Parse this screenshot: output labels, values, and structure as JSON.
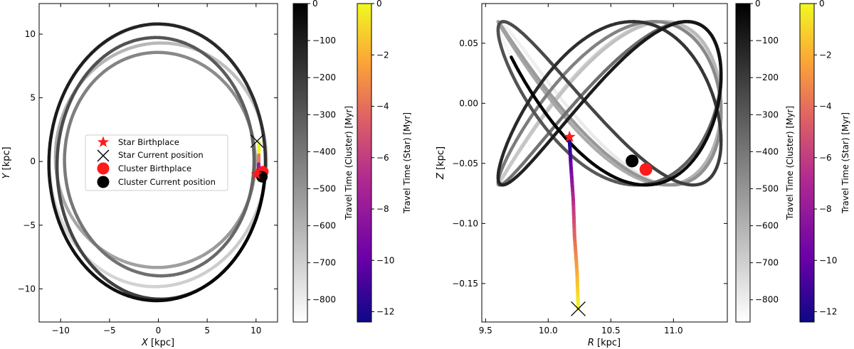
{
  "chart_data": [
    {
      "type": "line",
      "panel": "left",
      "title": "",
      "xlabel_var": "X",
      "xlabel_unit": " [kpc]",
      "ylabel_var": "Y",
      "ylabel_unit": " [kpc]",
      "xlim": [
        -12.2,
        12.2
      ],
      "ylim": [
        -12.6,
        12.4
      ],
      "xticks": [
        -10,
        -5,
        0,
        5,
        10
      ],
      "yticks": [
        -10,
        -5,
        0,
        5,
        10
      ],
      "grid": false,
      "legend_position": "center-left",
      "legend": {
        "star_birthplace": "Star Birthplace",
        "star_current": "Star Current position",
        "cluster_birthplace": "Cluster Birthplace",
        "cluster_current": "Cluster Current position"
      },
      "cluster_orbit": {
        "description": "precessing ellipse in X-Y plane, color = travel time (cluster)",
        "semi_axis_x_range": [
          10.4,
          11.2
        ],
        "semi_axis_y_range": [
          9.7,
          11.0
        ],
        "loops": 5,
        "time_range_myr": [
          -860,
          0
        ]
      },
      "star_orbit": {
        "x": [
          10.3,
          10.28,
          10.27,
          10.26
        ],
        "y": [
          1.5,
          0.5,
          -0.2,
          -0.9
        ],
        "time_range_myr": [
          -12.4,
          0
        ]
      },
      "markers": {
        "star_birthplace": {
          "x": 10.05,
          "y": -1.0
        },
        "star_current": {
          "x": 10.1,
          "y": 1.6
        },
        "cluster_birthplace": {
          "x": 10.7,
          "y": -0.8
        },
        "cluster_current": {
          "x": 10.6,
          "y": -1.2
        }
      }
    },
    {
      "type": "line",
      "panel": "right",
      "title": "",
      "xlabel_var": "R",
      "xlabel_unit": " [kpc]",
      "ylabel_var": "Z",
      "ylabel_unit": " [kpc]",
      "xlim": [
        9.47,
        11.43
      ],
      "ylim": [
        -0.182,
        0.083
      ],
      "xticks": [
        9.5,
        10.0,
        10.5,
        11.0
      ],
      "xtick_labels": [
        "9.5",
        "10.0",
        "10.5",
        "11.0"
      ],
      "yticks": [
        0.05,
        0.0,
        -0.05,
        -0.1,
        -0.15
      ],
      "ytick_labels": [
        "0.05",
        "0.00",
        "−0.05",
        "−0.10",
        "−0.15"
      ],
      "grid": false,
      "cluster_orbit": {
        "description": "oscillating R-Z trajectory, color = travel time (cluster)",
        "r_range": [
          9.6,
          11.38
        ],
        "z_range": [
          -0.07,
          0.07
        ],
        "loops": 6
      },
      "star_orbit": {
        "r": [
          10.24,
          10.23,
          10.21,
          10.2,
          10.18,
          10.17
        ],
        "z": [
          -0.171,
          -0.14,
          -0.11,
          -0.08,
          -0.05,
          -0.03
        ]
      },
      "markers": {
        "star_birthplace": {
          "r": 10.17,
          "z": -0.028
        },
        "star_current": {
          "r": 10.24,
          "z": -0.171
        },
        "cluster_birthplace": {
          "r": 10.78,
          "z": -0.055
        },
        "cluster_current": {
          "r": 10.67,
          "z": -0.048
        }
      }
    }
  ],
  "colorbars": {
    "cluster": {
      "label": "Travel Time (Cluster) [Myr]",
      "range": [
        -860,
        0
      ],
      "ticks": [
        0,
        -100,
        -200,
        -300,
        -400,
        -500,
        -600,
        -700,
        -800
      ],
      "tick_labels": [
        "0",
        "−100",
        "−200",
        "−300",
        "−400",
        "−500",
        "−600",
        "−700",
        "−800"
      ],
      "colors": [
        "#ffffff",
        "#000000"
      ]
    },
    "star": {
      "label": "Travel Time (Star) [Myr]",
      "range": [
        -12.4,
        0
      ],
      "ticks": [
        0,
        -2,
        -4,
        -6,
        -8,
        -10,
        -12
      ],
      "tick_labels": [
        "0",
        "−2",
        "−4",
        "−6",
        "−8",
        "−10",
        "−12"
      ],
      "colors": [
        "#0d0887",
        "#6a00a8",
        "#b12a90",
        "#e16462",
        "#fca636",
        "#f0f921"
      ]
    }
  },
  "colors": {
    "marker_red": "#ff1a1a",
    "marker_black": "#000000"
  }
}
